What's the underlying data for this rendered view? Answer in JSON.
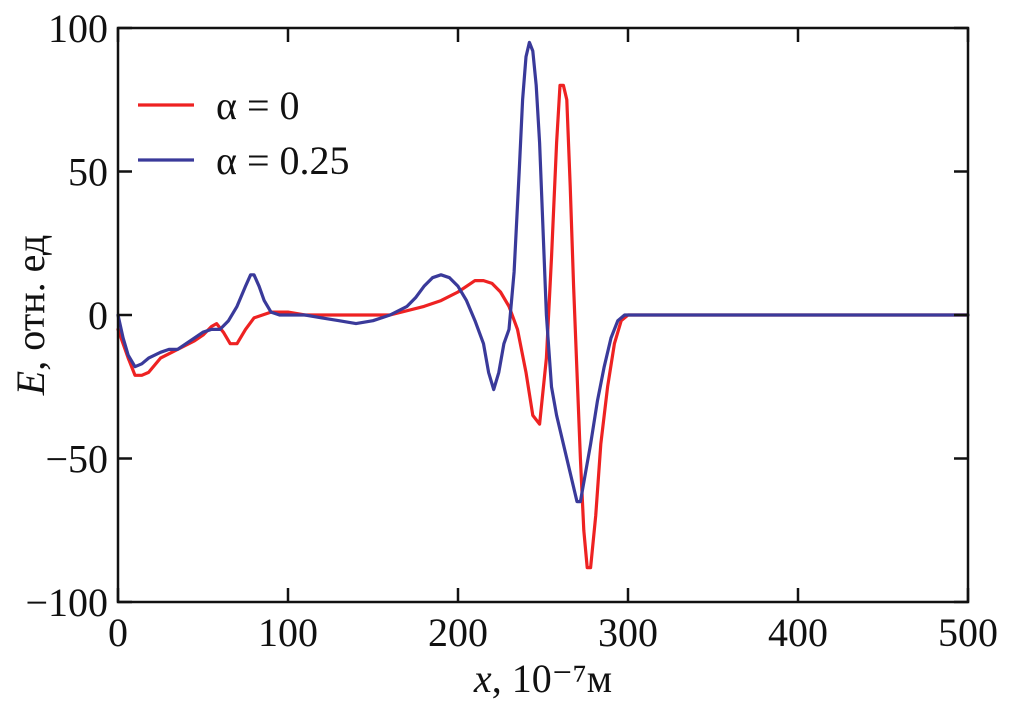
{
  "chart_data": {
    "type": "line",
    "title": "",
    "xlabel": "x, 10⁻⁷м",
    "xlabel_var": "x",
    "xlabel_unit": ", 10⁻⁷м",
    "ylabel": "E, отн. ед",
    "ylabel_var": "E",
    "ylabel_unit": ", отн. ед",
    "xlim": [
      0,
      500
    ],
    "ylim": [
      -100,
      100
    ],
    "x_ticks": [
      0,
      100,
      200,
      300,
      400,
      500
    ],
    "y_ticks": [
      100,
      50,
      0,
      -50,
      -100
    ],
    "x_tick_labels": [
      "0",
      "100",
      "200",
      "300",
      "400",
      "500"
    ],
    "y_tick_labels": [
      "100",
      "50",
      "0",
      "−50",
      "−100"
    ],
    "grid": false,
    "legend_position": "top-left",
    "series": [
      {
        "name": "α = 0",
        "color": "#ee2222",
        "x": [
          0,
          3,
          6,
          10,
          14,
          18,
          25,
          35,
          45,
          50,
          55,
          58,
          62,
          66,
          70,
          75,
          80,
          85,
          90,
          100,
          110,
          120,
          140,
          160,
          180,
          190,
          200,
          205,
          210,
          215,
          220,
          225,
          230,
          235,
          240,
          244,
          248,
          252,
          255,
          258,
          260,
          262,
          264,
          266,
          268,
          270,
          272,
          274,
          276,
          278,
          281,
          284,
          288,
          292,
          296,
          300,
          350,
          400,
          450,
          500
        ],
        "y": [
          -5,
          -10,
          -15,
          -21,
          -21,
          -20,
          -15,
          -12,
          -9,
          -7,
          -4,
          -3,
          -6,
          -10,
          -10,
          -5,
          -1,
          0,
          1,
          1,
          0,
          0,
          0,
          0,
          3,
          5,
          8,
          10,
          12,
          12,
          11,
          8,
          3,
          -5,
          -20,
          -35,
          -38,
          -15,
          20,
          60,
          80,
          80,
          75,
          45,
          10,
          -20,
          -50,
          -75,
          -88,
          -88,
          -70,
          -45,
          -25,
          -10,
          -2,
          0,
          0,
          0,
          0,
          0
        ]
      },
      {
        "name": "α = 0.25",
        "color": "#3a3a9a",
        "x": [
          0,
          3,
          6,
          10,
          14,
          18,
          25,
          30,
          35,
          40,
          45,
          50,
          55,
          60,
          65,
          70,
          75,
          78,
          80,
          83,
          86,
          90,
          95,
          100,
          110,
          120,
          130,
          140,
          150,
          160,
          170,
          175,
          180,
          185,
          190,
          195,
          200,
          205,
          210,
          215,
          218,
          221,
          224,
          227,
          230,
          233,
          236,
          238,
          240,
          242,
          244,
          246,
          248,
          250,
          252,
          255,
          258,
          262,
          266,
          270,
          272,
          275,
          278,
          282,
          286,
          290,
          294,
          298,
          300,
          350,
          400,
          450,
          500
        ],
        "y": [
          0,
          -8,
          -14,
          -18,
          -17,
          -15,
          -13,
          -12,
          -12,
          -10,
          -8,
          -6,
          -5,
          -5,
          -2,
          3,
          10,
          14,
          14,
          10,
          5,
          1,
          0,
          0,
          0,
          -1,
          -2,
          -3,
          -2,
          0,
          3,
          6,
          10,
          13,
          14,
          13,
          10,
          5,
          -2,
          -10,
          -20,
          -26,
          -20,
          -10,
          -5,
          15,
          50,
          75,
          90,
          95,
          92,
          80,
          60,
          30,
          0,
          -25,
          -35,
          -45,
          -55,
          -65,
          -65,
          -55,
          -45,
          -30,
          -18,
          -8,
          -2,
          0,
          0,
          0,
          0,
          0,
          0
        ]
      }
    ]
  }
}
